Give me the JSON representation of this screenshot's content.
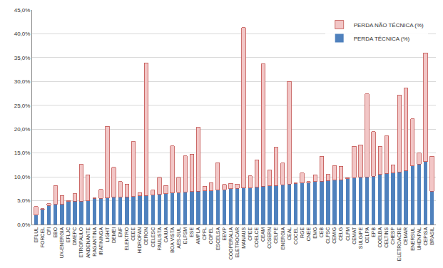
{
  "chart_data": {
    "type": "bar",
    "stacked": true,
    "grid": true,
    "legend": "top right",
    "categories": [
      "EFLUL",
      "FORCEL",
      "CFI",
      "EBO",
      "UX-ENERGIA",
      "EFLJC",
      "DMEPC",
      "ETROPAULO",
      "ANDENANTE",
      "RAGANTINA",
      "IRATININGA",
      "LIGHT",
      "DEMEI",
      "ENF",
      "ELEKTRO",
      "CEEE",
      "HIDROPAN",
      "CERON",
      "CELESC",
      "PAULISTA",
      "CAIUA",
      "BOA VISTA",
      "AES-SUL",
      "ELFSM",
      "ESE",
      "AMPLA",
      "CPFL",
      "COPEL",
      "ESCELSA",
      "EEVP",
      "COOPERALIA",
      "ELETROCAR",
      "MANAUS",
      "CPEE",
      "COELCE",
      "CEAM",
      "COSERN",
      "CELPE",
      "ENERGIA",
      "CEAL",
      "COCEL",
      "RGE",
      "CNEE",
      "EMG",
      "CEB",
      "CLFSC",
      "CEMIG",
      "CELG",
      "CLFM",
      "CEMAT",
      "SULGIPE",
      "CELPA",
      "EPB",
      "COELBA",
      "CELTINS",
      "CHESP",
      "ELETROACRE",
      "CEMAR",
      "ENERSUL",
      "UHENPAL",
      "CEPISA",
      "BRASIL"
    ],
    "series": [
      {
        "name": "PERDA TÉCNICA (%)",
        "color": "#4f81bd",
        "values": [
          2.0,
          3.2,
          4.0,
          4.2,
          4.2,
          4.8,
          4.9,
          4.9,
          5.0,
          5.5,
          5.5,
          5.6,
          5.7,
          5.7,
          5.8,
          5.9,
          6.0,
          6.1,
          6.2,
          6.3,
          6.5,
          6.6,
          6.7,
          6.8,
          6.9,
          7.0,
          7.1,
          7.1,
          7.2,
          7.3,
          7.5,
          7.6,
          7.7,
          7.7,
          7.8,
          8.0,
          8.1,
          8.2,
          8.3,
          8.5,
          8.6,
          8.7,
          8.8,
          9.0,
          9.1,
          9.2,
          9.3,
          9.4,
          9.6,
          9.8,
          9.9,
          10.0,
          10.1,
          10.5,
          10.7,
          10.8,
          11.0,
          11.3,
          12.3,
          12.7,
          13.2,
          7.0
        ]
      },
      {
        "name": "PERDA NÃO TÉCNICA (%)",
        "color": "#f2c6c6",
        "values": [
          1.8,
          0.1,
          0.4,
          4.0,
          1.9,
          0.2,
          1.6,
          7.7,
          5.4,
          0.1,
          1.9,
          15.0,
          6.3,
          3.3,
          2.7,
          11.5,
          0.7,
          27.8,
          1.0,
          3.6,
          1.7,
          9.9,
          3.2,
          7.6,
          7.9,
          13.4,
          0.9,
          1.7,
          5.8,
          1.1,
          1.1,
          0.9,
          33.6,
          2.5,
          5.8,
          25.7,
          3.3,
          8.0,
          4.6,
          21.5,
          0.1,
          2.1,
          0.2,
          1.4,
          5.2,
          1.3,
          3.1,
          2.8,
          0.2,
          6.6,
          6.8,
          17.4,
          9.4,
          5.9,
          7.9,
          1.7,
          16.2,
          17.3,
          9.9,
          2.3,
          22.8,
          7.3
        ]
      }
    ],
    "ylim": [
      0,
      45
    ],
    "yticks": [
      {
        "value": 0,
        "label": "0,0%"
      },
      {
        "value": 5,
        "label": "5,0%"
      },
      {
        "value": 10,
        "label": "10,0%"
      },
      {
        "value": 15,
        "label": "15,0%"
      },
      {
        "value": 20,
        "label": "20,0%"
      },
      {
        "value": 25,
        "label": "25,0%"
      },
      {
        "value": 30,
        "label": "30,0%"
      },
      {
        "value": 35,
        "label": "35,0%"
      },
      {
        "value": 40,
        "label": "40,0%"
      },
      {
        "value": 45,
        "label": "45,0%"
      }
    ]
  }
}
